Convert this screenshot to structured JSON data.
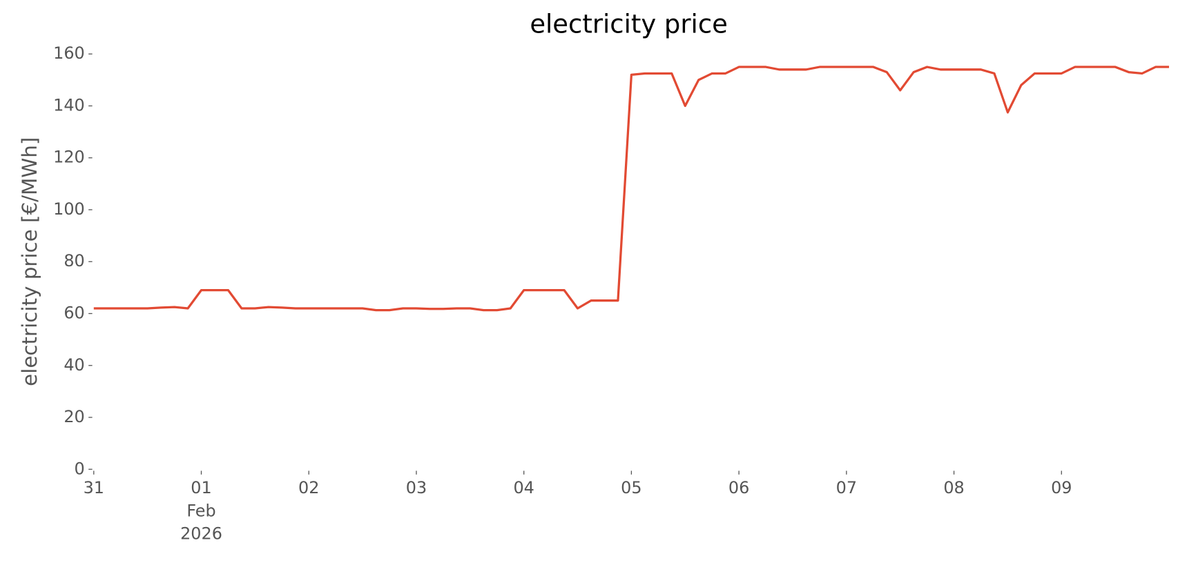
{
  "chart_data": {
    "type": "line",
    "title": "electricity price",
    "y_label": "electricity price [€/MWh]",
    "series": [
      {
        "name": "electricity price",
        "color": "#e24a33",
        "values": [
          62,
          62,
          62,
          62,
          62,
          62.3,
          62.5,
          62,
          69,
          69,
          69,
          62,
          62,
          62.5,
          62.3,
          62,
          62,
          62,
          62,
          62,
          62,
          61.3,
          61.3,
          62,
          62,
          61.8,
          61.8,
          62,
          62,
          61.3,
          61.3,
          62,
          69,
          69,
          69,
          69,
          62,
          65,
          65,
          65,
          152,
          152.5,
          152.5,
          152.5,
          140,
          150,
          152.5,
          152.5,
          155,
          155,
          155,
          154,
          154,
          154,
          155,
          155,
          155,
          155,
          155,
          153,
          146,
          153,
          155,
          154,
          154,
          154,
          154,
          152.5,
          137.5,
          148,
          152.5,
          152.5,
          152.5,
          155,
          155,
          155,
          155,
          153,
          152.5,
          155,
          155
        ]
      }
    ],
    "xlim": [
      0,
      80
    ],
    "xticks": [
      {
        "value": 0,
        "label": "31"
      },
      {
        "value": 8,
        "label": "01"
      },
      {
        "value": 16,
        "label": "02"
      },
      {
        "value": 24,
        "label": "03"
      },
      {
        "value": 32,
        "label": "04"
      },
      {
        "value": 40,
        "label": "05"
      },
      {
        "value": 48,
        "label": "06"
      },
      {
        "value": 56,
        "label": "07"
      },
      {
        "value": 64,
        "label": "08"
      },
      {
        "value": 72,
        "label": "09"
      }
    ],
    "x_secondary_labels": [
      "Feb",
      "2026"
    ],
    "ylim": [
      0,
      160
    ],
    "yticks": [
      0,
      20,
      40,
      60,
      80,
      100,
      120,
      140,
      160
    ]
  }
}
